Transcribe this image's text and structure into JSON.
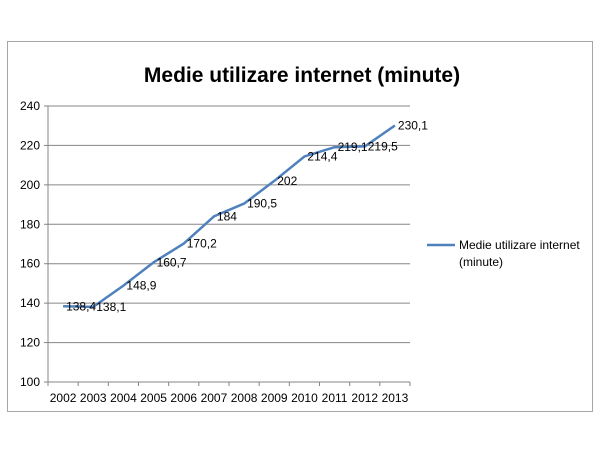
{
  "chart_data": {
    "type": "line",
    "title": "Medie utilizare internet (minute)",
    "xlabel": "",
    "ylabel": "",
    "categories": [
      "2002",
      "2003",
      "2004",
      "2005",
      "2006",
      "2007",
      "2008",
      "2009",
      "2010",
      "2011",
      "2012",
      "2013"
    ],
    "series": [
      {
        "name": "Medie utilizare internet (minute)",
        "values": [
          138.4,
          138.1,
          148.9,
          160.7,
          170.2,
          184,
          190.5,
          202,
          214.4,
          219.1,
          219.5,
          230.1
        ],
        "labels": [
          "138,4",
          "138,1",
          "148,9",
          "160,7",
          "170,2",
          "184",
          "190,5",
          "202",
          "214,4",
          "219,1",
          "219,5",
          "230,1"
        ],
        "color": "#4f81bd"
      }
    ],
    "ylim": [
      100,
      240
    ],
    "yticks": [
      100,
      120,
      140,
      160,
      180,
      200,
      220,
      240
    ],
    "grid": true,
    "legend": "right"
  }
}
